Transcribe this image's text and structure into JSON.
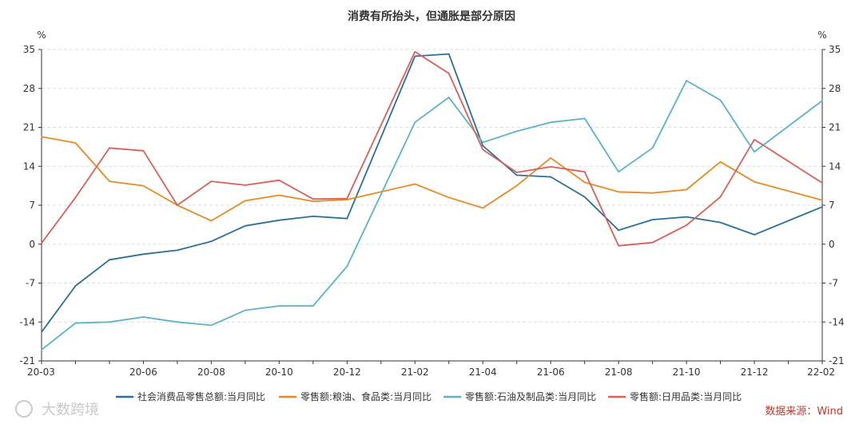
{
  "chart_data": {
    "type": "line",
    "title": "消费有所抬头，但通胀是部分原因",
    "ylabel_left": "%",
    "ylabel_right": "%",
    "ylim": [
      -21,
      35
    ],
    "yticks": [
      35,
      28,
      21,
      14,
      7,
      0,
      -7,
      -14,
      -21
    ],
    "x": [
      "20-03",
      "20-04",
      "20-05",
      "20-06",
      "20-07",
      "20-08",
      "20-09",
      "20-10",
      "20-11",
      "20-12",
      "21-01",
      "21-02",
      "21-03",
      "21-04",
      "21-05",
      "21-06",
      "21-07",
      "21-08",
      "21-09",
      "21-10",
      "21-11",
      "21-12",
      "22-01",
      "22-02"
    ],
    "xtick_labels": [
      "20-03",
      "20-06",
      "20-08",
      "20-10",
      "20-12",
      "21-02",
      "21-04",
      "21-06",
      "21-08",
      "21-10",
      "21-12",
      "22-02"
    ],
    "grid": true,
    "legend_position": "bottom",
    "series": [
      {
        "name": "社会消费品零售总额:当月同比",
        "color": "#2a6f97",
        "values": [
          -15.8,
          -7.5,
          -2.8,
          -1.8,
          -1.1,
          0.5,
          3.3,
          4.3,
          5.0,
          4.6,
          null,
          33.8,
          34.2,
          17.7,
          12.4,
          12.1,
          8.5,
          2.5,
          4.4,
          4.9,
          3.9,
          1.7,
          null,
          6.7
        ]
      },
      {
        "name": "零售额:粮油、食品类:当月同比",
        "color": "#e88a25",
        "values": [
          19.3,
          18.2,
          11.3,
          10.5,
          7.0,
          4.2,
          7.8,
          8.8,
          7.7,
          8.0,
          null,
          10.8,
          8.4,
          6.5,
          10.5,
          15.5,
          11.1,
          9.4,
          9.2,
          9.8,
          14.8,
          11.2,
          null,
          7.9
        ]
      },
      {
        "name": "零售额:石油及制品类:当月同比",
        "color": "#5ab4c2",
        "values": [
          -19.0,
          -14.2,
          -14.0,
          -13.1,
          -14.0,
          -14.6,
          -11.9,
          -11.1,
          -11.1,
          -4.0,
          null,
          21.9,
          26.4,
          18.3,
          20.3,
          21.9,
          22.6,
          13.0,
          17.3,
          29.4,
          25.9,
          16.6,
          null,
          25.8
        ]
      },
      {
        "name": "零售额:日用品类:当月同比",
        "color": "#d9605a",
        "values": [
          0.2,
          8.4,
          17.3,
          16.8,
          7.0,
          11.3,
          10.6,
          11.5,
          8.1,
          8.2,
          null,
          34.6,
          30.7,
          17.0,
          12.9,
          13.9,
          13.0,
          -0.3,
          0.3,
          3.4,
          8.5,
          18.8,
          null,
          11.0
        ]
      }
    ]
  },
  "source": "数据来源：Wind",
  "watermark": "大数跨境"
}
